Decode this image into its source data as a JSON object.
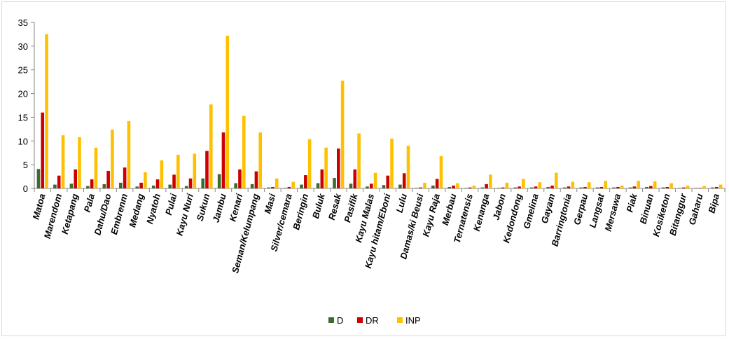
{
  "chart_data": {
    "type": "bar",
    "title": "",
    "xlabel": "",
    "ylabel": "",
    "ylim": [
      0,
      35
    ],
    "yticks": [
      "0",
      "5",
      "10",
      "15",
      "20",
      "25",
      "30",
      "35"
    ],
    "grid": false,
    "legend_position": "bottom",
    "categories": [
      "Matoa",
      "Marendom",
      "Ketapang",
      "Pala",
      "Dahu/Dao",
      "Embrenm",
      "Medang",
      "Nyatoh",
      "Pulai",
      "Kayu Nuri",
      "Sukun",
      "Jambu",
      "Kenari",
      "Seman/Kelumpang",
      "Masi",
      "Silver/cemara",
      "Beringin",
      "Buluk",
      "Resak",
      "Pasifik",
      "Kayu Malas",
      "Kayu hitam/Eboni",
      "Lulu",
      "Damas/ki Beusi",
      "Kayu Raja",
      "Merbau",
      "Ternatensis",
      "Kenanga",
      "Jabon",
      "Kedondong",
      "Gmelina",
      "Gayam",
      "Barringtonia",
      "Gerpau",
      "Langsat",
      "Mersawa",
      "Piak",
      "Binuan",
      "Kosiketon",
      "Bitanggur",
      "Gaharu",
      "Bipa"
    ],
    "series": [
      {
        "name": "D",
        "color": "#3e6b2f",
        "values": [
          4.1,
          0.8,
          1.0,
          0.5,
          0.9,
          1.2,
          0.4,
          0.6,
          0.8,
          0.5,
          2.1,
          3.0,
          1.1,
          0.9,
          0.2,
          0.1,
          0.8,
          1.1,
          2.2,
          1.0,
          0.4,
          0.7,
          0.8,
          0.1,
          0.6,
          0.3,
          0.1,
          0.2,
          0.1,
          0.2,
          0.2,
          0.3,
          0.2,
          0.2,
          0.2,
          0.2,
          0.2,
          0.3,
          0.2,
          0.1,
          0.1,
          0.2
        ]
      },
      {
        "name": "DR",
        "color": "#cc0000",
        "values": [
          16.0,
          2.7,
          4.0,
          1.9,
          3.7,
          4.4,
          1.2,
          1.9,
          2.9,
          2.1,
          7.9,
          11.8,
          4.0,
          3.6,
          0.3,
          0.3,
          2.8,
          4.0,
          8.4,
          4.0,
          1.0,
          2.7,
          3.2,
          0.2,
          2.0,
          0.6,
          0.2,
          0.9,
          0.2,
          0.4,
          0.4,
          0.6,
          0.4,
          0.3,
          0.3,
          0.3,
          0.4,
          0.5,
          0.3,
          0.2,
          0.1,
          0.3
        ]
      },
      {
        "name": "INP",
        "color": "#ffc000",
        "values": [
          32.5,
          11.2,
          10.8,
          8.6,
          12.4,
          14.2,
          3.4,
          5.9,
          7.1,
          7.3,
          17.7,
          32.2,
          15.3,
          11.8,
          2.1,
          1.4,
          10.4,
          8.6,
          22.7,
          11.6,
          3.3,
          10.5,
          9.0,
          1.2,
          6.8,
          1.1,
          0.6,
          2.9,
          1.2,
          2.0,
          1.3,
          3.3,
          1.4,
          1.3,
          1.6,
          0.6,
          1.6,
          1.5,
          1.1,
          0.6,
          0.5,
          0.8
        ]
      }
    ]
  }
}
